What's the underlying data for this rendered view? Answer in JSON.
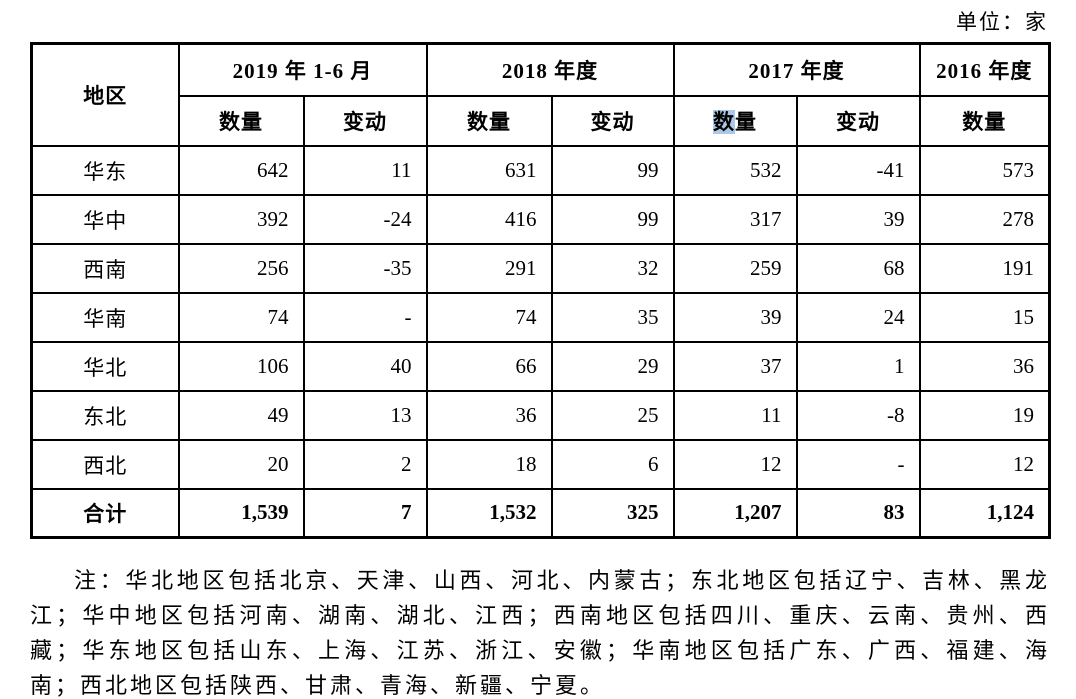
{
  "page": {
    "unit_label": "单位：家"
  },
  "colors": {
    "selection_highlight": "#abc8e6",
    "border": "#000000",
    "background": "#ffffff"
  },
  "table": {
    "region_header": "地区",
    "year_headers": [
      "2019 年 1-6 月",
      "2018 年度",
      "2017 年度",
      "2016 年度"
    ],
    "subheaders": [
      {
        "label": "数量"
      },
      {
        "label": "变动"
      },
      {
        "label": "数量"
      },
      {
        "label": "变动"
      },
      {
        "label_highlight": "数",
        "label_rest": "量"
      },
      {
        "label": "变动"
      },
      {
        "label": "数量"
      }
    ],
    "rows": [
      {
        "region": "华东",
        "values": [
          "642",
          "11",
          "631",
          "99",
          "532",
          "-41",
          "573"
        ]
      },
      {
        "region": "华中",
        "values": [
          "392",
          "-24",
          "416",
          "99",
          "317",
          "39",
          "278"
        ]
      },
      {
        "region": "西南",
        "values": [
          "256",
          "-35",
          "291",
          "32",
          "259",
          "68",
          "191"
        ]
      },
      {
        "region": "华南",
        "values": [
          "74",
          "-",
          "74",
          "35",
          "39",
          "24",
          "15"
        ]
      },
      {
        "region": "华北",
        "values": [
          "106",
          "40",
          "66",
          "29",
          "37",
          "1",
          "36"
        ]
      },
      {
        "region": "东北",
        "values": [
          "49",
          "13",
          "36",
          "25",
          "11",
          "-8",
          "19"
        ]
      },
      {
        "region": "西北",
        "values": [
          "20",
          "2",
          "18",
          "6",
          "12",
          "-",
          "12"
        ]
      }
    ],
    "total_row": {
      "region": "合计",
      "values": [
        "1,539",
        "7",
        "1,532",
        "325",
        "1,207",
        "83",
        "1,124"
      ]
    }
  },
  "note": {
    "text": "注：华北地区包括北京、天津、山西、河北、内蒙古；东北地区包括辽宁、吉林、黑龙江；华中地区包括河南、湖南、湖北、江西；西南地区包括四川、重庆、云南、贵州、西藏；华东地区包括山东、上海、江苏、浙江、安徽；华南地区包括广东、广西、福建、海南；西北地区包括陕西、甘肃、青海、新疆、宁夏。"
  }
}
